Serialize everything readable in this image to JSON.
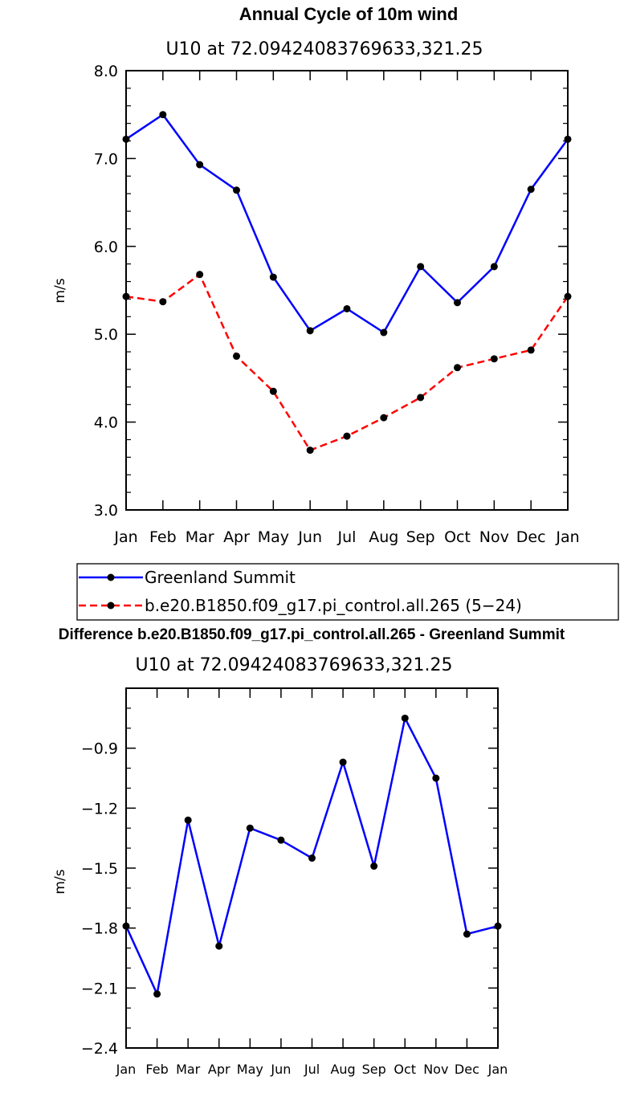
{
  "chart_data": [
    {
      "type": "line",
      "title": "Annual Cycle of 10m wind",
      "subtitle": "U10 at 72.09424083769633,321.25",
      "ylabel": "m/s",
      "xlabel": "",
      "ylim": [
        3.0,
        8.0
      ],
      "yticks": [
        "3.0",
        "4.0",
        "5.0",
        "6.0",
        "7.0",
        "8.0"
      ],
      "categories": [
        "Jan",
        "Feb",
        "Mar",
        "Apr",
        "May",
        "Jun",
        "Jul",
        "Aug",
        "Sep",
        "Oct",
        "Nov",
        "Dec",
        "Jan"
      ],
      "series": [
        {
          "name": "Greenland Summit",
          "color": "#0000ff",
          "dash": "solid",
          "values": [
            7.22,
            7.5,
            6.93,
            6.64,
            5.65,
            5.04,
            5.29,
            5.02,
            5.77,
            5.36,
            5.77,
            6.65,
            7.22
          ]
        },
        {
          "name": "b.e20.B1850.f09_g17.pi_control.all.265 (5−24)",
          "color": "#ff0000",
          "dash": "dashed",
          "values": [
            5.43,
            5.37,
            5.68,
            4.75,
            4.35,
            3.68,
            3.84,
            4.05,
            4.28,
            4.62,
            4.72,
            4.82,
            5.43
          ]
        }
      ],
      "legend": "below"
    },
    {
      "type": "line",
      "title": "Difference b.e20.B1850.f09_g17.pi_control.all.265 - Greenland Summit",
      "subtitle": "U10 at 72.09424083769633,321.25",
      "ylabel": "m/s",
      "xlabel": "",
      "ylim": [
        -2.4,
        -0.6
      ],
      "yticks": [
        "−2.4",
        "−2.1",
        "−1.8",
        "−1.5",
        "−1.2",
        "−0.9"
      ],
      "categories": [
        "Jan",
        "Feb",
        "Mar",
        "Apr",
        "May",
        "Jun",
        "Jul",
        "Aug",
        "Sep",
        "Oct",
        "Nov",
        "Dec",
        "Jan"
      ],
      "series": [
        {
          "color": "#0000ff",
          "dash": "solid",
          "values": [
            -1.79,
            -2.13,
            -1.26,
            -1.89,
            -1.3,
            -1.36,
            -1.45,
            -0.97,
            -1.49,
            -0.75,
            -1.05,
            -1.83,
            -1.79
          ]
        }
      ]
    }
  ]
}
